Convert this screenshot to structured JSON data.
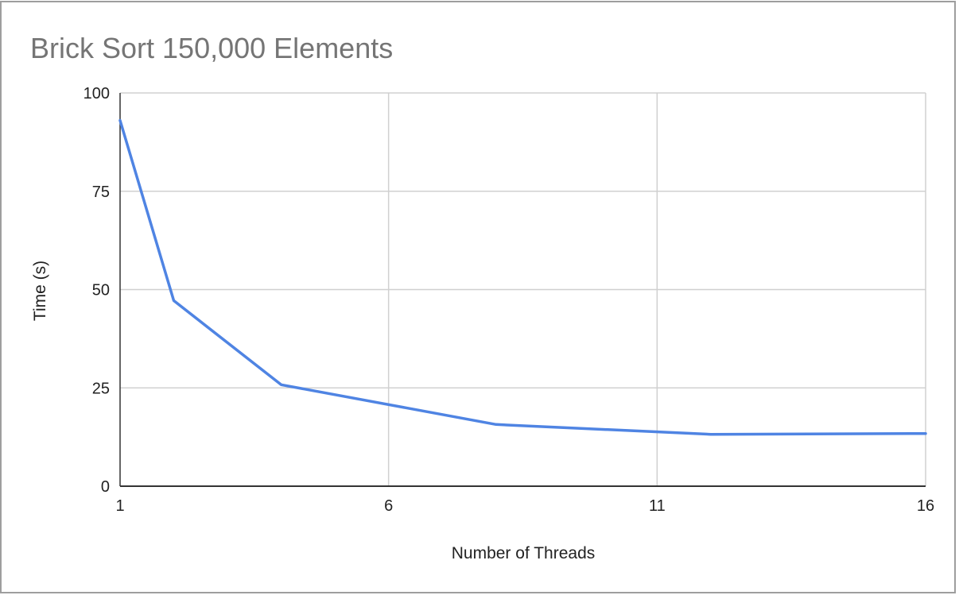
{
  "chart_data": {
    "type": "line",
    "title": "Brick Sort 150,000 Elements",
    "xlabel": "Number of Threads",
    "ylabel": "Time (s)",
    "xlim": [
      1,
      16
    ],
    "ylim": [
      0,
      100
    ],
    "x_ticks": [
      "1",
      "6",
      "11",
      "16"
    ],
    "y_ticks": [
      "0",
      "25",
      "50",
      "75",
      "100"
    ],
    "grid": true,
    "legend": "none",
    "series": [
      {
        "x": [
          1,
          2,
          4,
          8,
          12,
          16
        ],
        "values": [
          93,
          47.2,
          25.8,
          15.7,
          13.2,
          13.4
        ],
        "color": "#4f84e3"
      }
    ]
  }
}
